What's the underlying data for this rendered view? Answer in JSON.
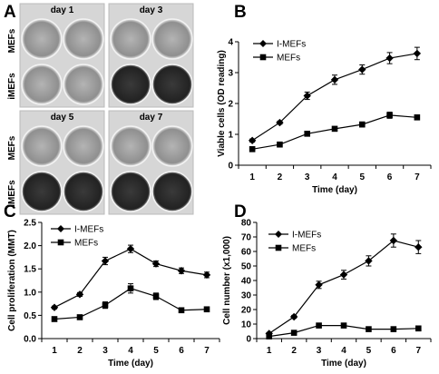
{
  "panels": {
    "A": {
      "letter": "A",
      "wells": {
        "day_labels": [
          "day 1",
          "day 3",
          "day 5",
          "day 7"
        ],
        "row_labels": [
          "MEFs",
          "iMEFs",
          "MEFs",
          "iMEFs"
        ]
      }
    },
    "B": {
      "letter": "B"
    },
    "C": {
      "letter": "C"
    },
    "D": {
      "letter": "D"
    }
  },
  "colors": {
    "line": "#000000",
    "well_light": "#aaaaaa",
    "well_dark": "#2e2e2e",
    "plate": "#d8d8d8"
  },
  "chart_data": [
    {
      "panel": "B",
      "type": "line",
      "x": [
        1,
        2,
        3,
        4,
        5,
        6,
        7
      ],
      "xlabel": "Time (day)",
      "ylabel": "Viable cells (OD reading)",
      "ylim": [
        0,
        4
      ],
      "yticks": [
        "0",
        "1",
        "2",
        "3",
        "4"
      ],
      "xticks": [
        "1",
        "2",
        "3",
        "4",
        "5",
        "6",
        "7"
      ],
      "legend": "top-left",
      "series": [
        {
          "name": "I-MEFs",
          "marker": "diamond",
          "values": [
            0.8,
            1.38,
            2.25,
            2.77,
            3.1,
            3.47,
            3.62
          ],
          "errors": [
            0.05,
            0.05,
            0.12,
            0.15,
            0.15,
            0.18,
            0.2
          ]
        },
        {
          "name": "MEFs",
          "marker": "square",
          "values": [
            0.52,
            0.67,
            1.02,
            1.18,
            1.32,
            1.62,
            1.55
          ],
          "errors": [
            0.04,
            0.04,
            0.05,
            0.06,
            0.08,
            0.1,
            0.08
          ]
        }
      ]
    },
    {
      "panel": "C",
      "type": "line",
      "x": [
        1,
        2,
        3,
        4,
        5,
        6,
        7
      ],
      "xlabel": "Time (day)",
      "ylabel": "Cell proliferation (MMT)",
      "ylim": [
        0,
        2.5
      ],
      "yticks": [
        "0.0",
        "0.5",
        "1.0",
        "1.5",
        "2.0",
        "2.5"
      ],
      "xticks": [
        "1",
        "2",
        "3",
        "4",
        "5",
        "6",
        "7"
      ],
      "legend": "top-left",
      "series": [
        {
          "name": "I-MEFs",
          "marker": "diamond",
          "values": [
            0.67,
            0.95,
            1.67,
            1.93,
            1.61,
            1.46,
            1.37
          ],
          "errors": [
            0.03,
            0.04,
            0.08,
            0.08,
            0.06,
            0.06,
            0.06
          ]
        },
        {
          "name": "MEFs",
          "marker": "square",
          "values": [
            0.42,
            0.46,
            0.72,
            1.08,
            0.91,
            0.61,
            0.63
          ],
          "errors": [
            0.03,
            0.03,
            0.07,
            0.1,
            0.07,
            0.04,
            0.04
          ]
        }
      ]
    },
    {
      "panel": "D",
      "type": "line",
      "x": [
        1,
        2,
        3,
        4,
        5,
        6,
        7
      ],
      "xlabel": "Time (day)",
      "ylabel": "Cell number (x1,000)",
      "ylim": [
        0,
        80
      ],
      "yticks": [
        "0",
        "10",
        "20",
        "30",
        "40",
        "50",
        "60",
        "70",
        "80"
      ],
      "xticks": [
        "1",
        "2",
        "3",
        "4",
        "5",
        "6",
        "7"
      ],
      "legend": "top-left",
      "series": [
        {
          "name": "I-MEFs",
          "marker": "diamond",
          "values": [
            3.5,
            15,
            37,
            44,
            53.5,
            67.5,
            63
          ],
          "errors": [
            0.5,
            1,
            2.5,
            3,
            3.5,
            4.5,
            4.5
          ]
        },
        {
          "name": "MEFs",
          "marker": "square",
          "values": [
            1.5,
            4,
            9,
            9,
            6.5,
            6.5,
            7
          ],
          "errors": [
            0.5,
            0.5,
            1.5,
            1.5,
            0.5,
            0.5,
            0.5
          ]
        }
      ]
    }
  ]
}
